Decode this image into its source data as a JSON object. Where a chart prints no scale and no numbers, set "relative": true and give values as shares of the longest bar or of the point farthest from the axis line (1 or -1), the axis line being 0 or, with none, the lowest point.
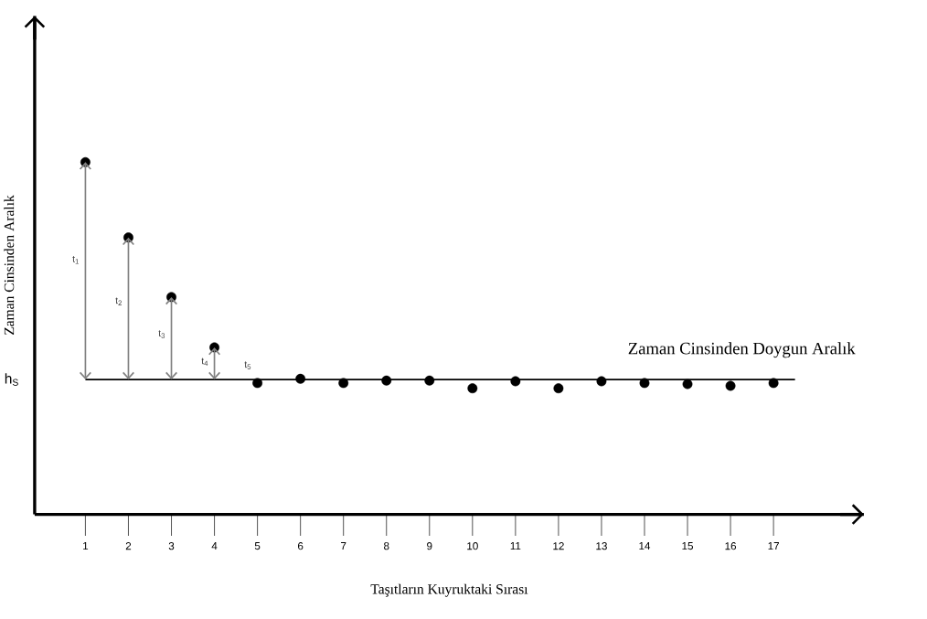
{
  "chart_data": {
    "type": "scatter",
    "relative": true,
    "xlabel": "Taşıtların Kuyruktaki Sırası",
    "ylabel": "Zaman Cinsinden Aralık",
    "categories": [
      "1",
      "2",
      "3",
      "4",
      "5",
      "6",
      "7",
      "8",
      "9",
      "10",
      "11",
      "12",
      "13",
      "14",
      "15",
      "16",
      "17"
    ],
    "series": [
      {
        "color": "#000000",
        "values": [
          1.0,
          0.786,
          0.617,
          0.474,
          0.373,
          0.385,
          0.373,
          0.38,
          0.38,
          0.358,
          0.378,
          0.358,
          0.378,
          0.373,
          0.37,
          0.365,
          0.373
        ]
      }
    ],
    "marker": "circle",
    "ref_lines": [
      {
        "axis": "y",
        "value": 0.383,
        "label": "h$_{S}$",
        "color": "#000000"
      }
    ],
    "annotations": [
      "t$_{1}$",
      "t$_{2}$",
      "t$_{3}$",
      "t$_{4}$",
      "t$_{5}$",
      "Zaman Cinsinden Doygun Aralık"
    ]
  }
}
